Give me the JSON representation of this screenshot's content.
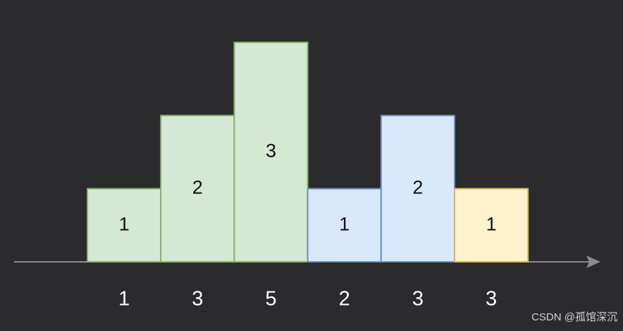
{
  "chart_data": {
    "type": "bar",
    "categories": [
      "1",
      "3",
      "5",
      "2",
      "3",
      "3"
    ],
    "values": [
      1,
      2,
      3,
      1,
      2,
      1
    ],
    "colors": [
      "#d5e8d4",
      "#d5e8d4",
      "#d5e8d4",
      "#dae8fc",
      "#dae8fc",
      "#fff2cc"
    ],
    "stroke_colors": [
      "#82b366",
      "#82b366",
      "#82b366",
      "#6c8ebf",
      "#6c8ebf",
      "#d6b656"
    ],
    "ylim": [
      0,
      3
    ]
  },
  "watermark": "CSDN @孤馆深沉"
}
